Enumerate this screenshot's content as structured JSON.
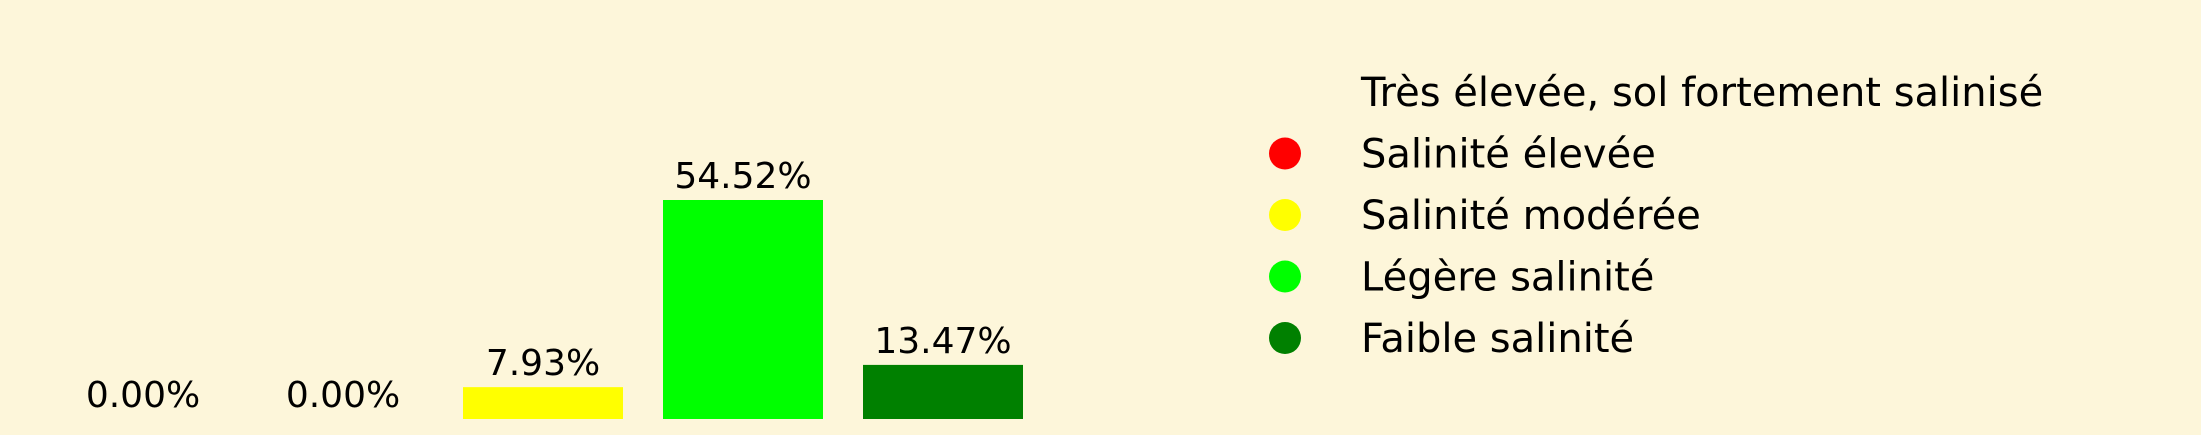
{
  "chart_data": {
    "type": "bar",
    "categories": [
      "Très élevée, sol fortement salinisé",
      "Salinité élevée",
      "Salinité modérée",
      "Légère salinité",
      "Faible salinité"
    ],
    "values": [
      0.0,
      0.0,
      7.93,
      54.52,
      13.47
    ],
    "value_labels": [
      "0.00%",
      "0.00%",
      "7.93%",
      "54.52%",
      "13.47%"
    ],
    "colors": [
      "#ffffff",
      "#ff0000",
      "#ffff00",
      "#00ff00",
      "#008000"
    ],
    "ylim": [
      0,
      60
    ],
    "grid": false,
    "legend_position": "right",
    "legend": [
      {
        "label": "Très élevée, sol fortement salinisé",
        "color": ""
      },
      {
        "label": "Salinité élevée",
        "color": "#ff0000"
      },
      {
        "label": "Salinité modérée",
        "color": "#ffff00"
      },
      {
        "label": "Légère salinité",
        "color": "#00ff00"
      },
      {
        "label": "Faible salinité",
        "color": "#008000"
      }
    ]
  }
}
